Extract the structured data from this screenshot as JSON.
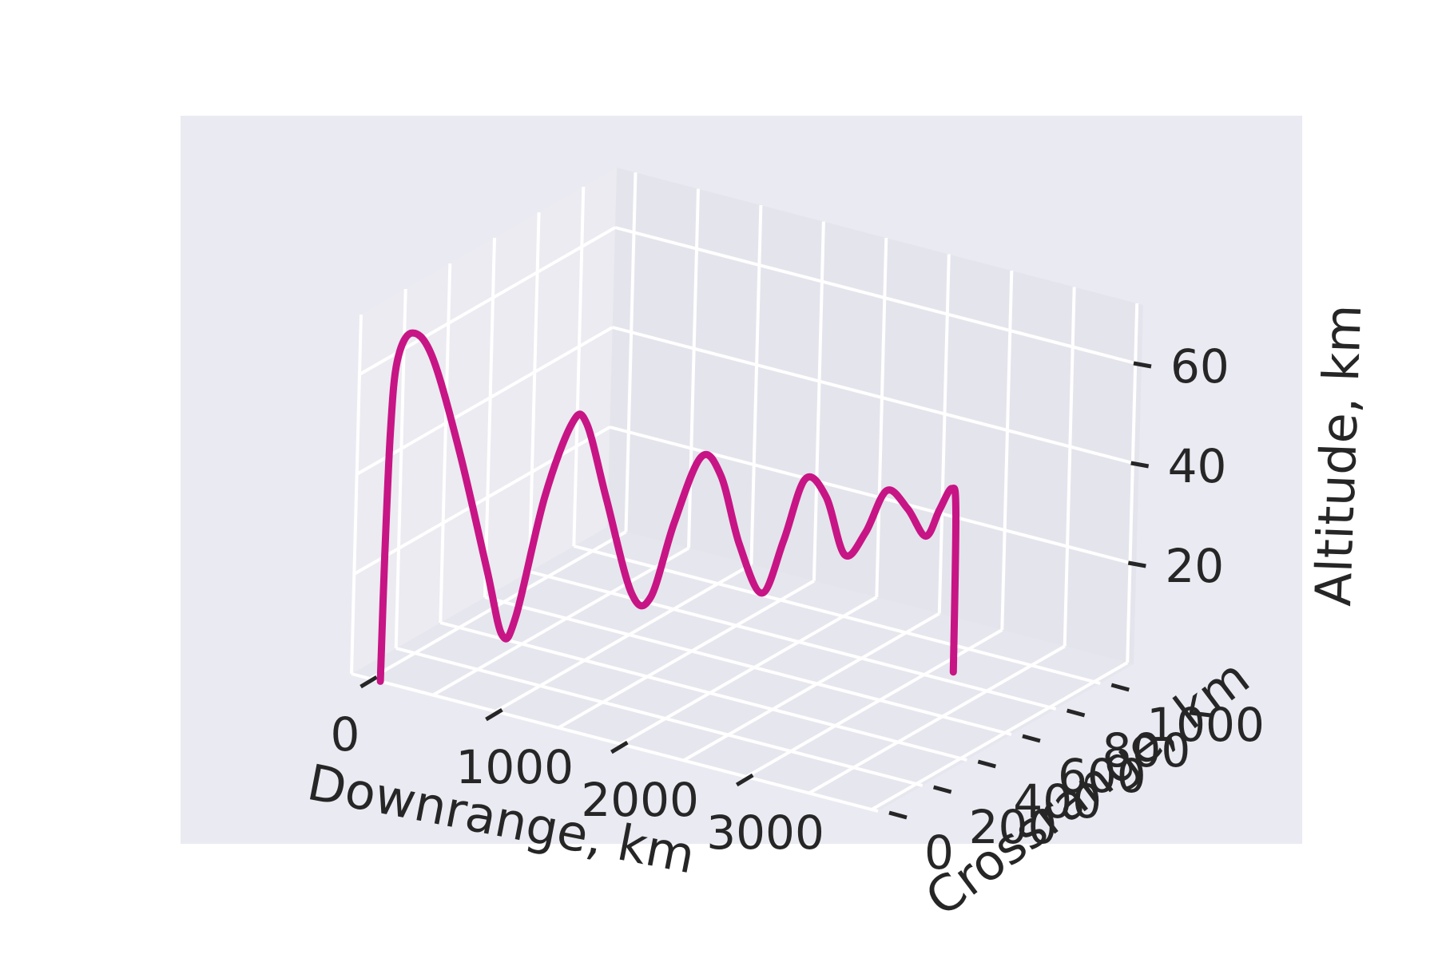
{
  "chart_data": {
    "type": "line",
    "projection": "3d",
    "title": "",
    "xlabel": "Downrange, km",
    "ylabel": "Crossrange, km",
    "zlabel": "Altitude, km",
    "xlim": [
      -150,
      4050
    ],
    "ylim": [
      0,
      1150
    ],
    "zlim": [
      0,
      72
    ],
    "xticks": [
      0,
      1000,
      2000,
      3000
    ],
    "yticks": [
      0,
      200,
      400,
      600,
      800,
      1000
    ],
    "zticks": [
      20,
      40,
      60
    ],
    "grid": true,
    "series": [
      {
        "color": "#c71585",
        "points": [
          [
            80,
            0,
            0
          ],
          [
            80,
            5,
            25
          ],
          [
            90,
            10,
            50
          ],
          [
            120,
            15,
            64
          ],
          [
            210,
            25,
            70
          ],
          [
            350,
            40,
            66
          ],
          [
            550,
            60,
            48
          ],
          [
            760,
            80,
            25
          ],
          [
            870,
            95,
            12
          ],
          [
            950,
            110,
            16
          ],
          [
            1100,
            140,
            40
          ],
          [
            1250,
            170,
            55
          ],
          [
            1330,
            190,
            55
          ],
          [
            1450,
            220,
            40
          ],
          [
            1600,
            260,
            21
          ],
          [
            1700,
            290,
            20
          ],
          [
            1820,
            320,
            35
          ],
          [
            1950,
            360,
            48
          ],
          [
            2050,
            395,
            44
          ],
          [
            2150,
            430,
            30
          ],
          [
            2270,
            470,
            20
          ],
          [
            2360,
            510,
            30
          ],
          [
            2450,
            550,
            42
          ],
          [
            2550,
            590,
            38
          ],
          [
            2640,
            630,
            26
          ],
          [
            2730,
            670,
            30
          ],
          [
            2820,
            710,
            38
          ],
          [
            2920,
            750,
            34
          ],
          [
            3000,
            790,
            28
          ],
          [
            3060,
            815,
            33
          ],
          [
            3110,
            840,
            37
          ],
          [
            3130,
            850,
            32
          ],
          [
            3135,
            855,
            0
          ]
        ]
      }
    ]
  }
}
